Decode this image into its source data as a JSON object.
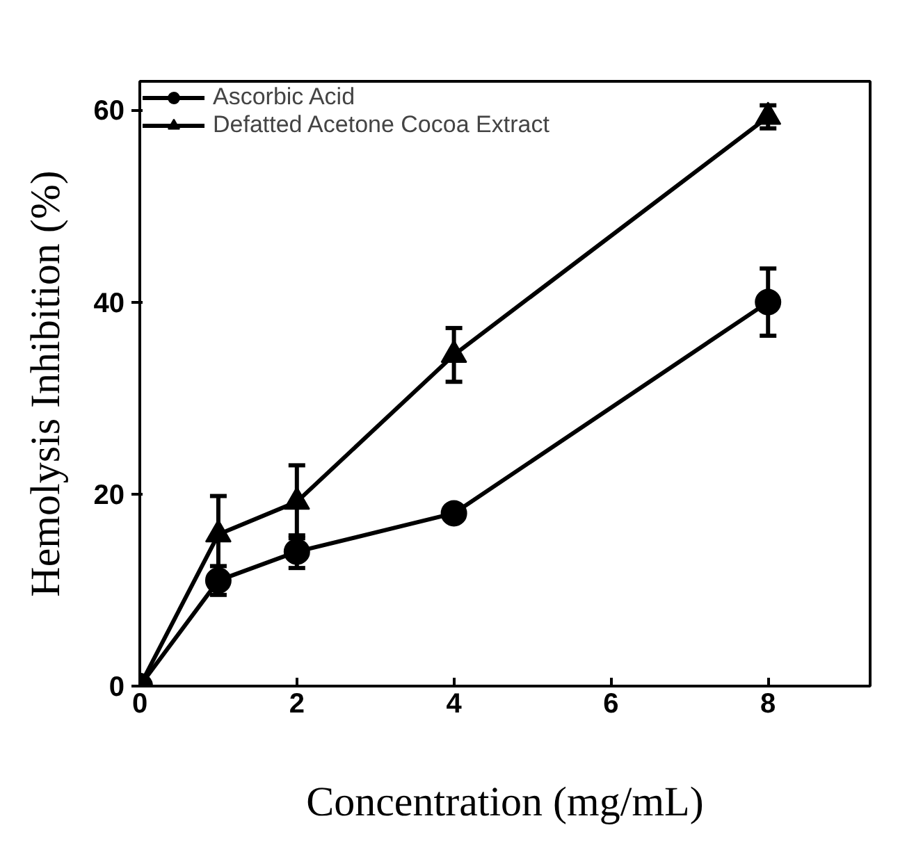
{
  "chart_data": {
    "type": "line",
    "xlabel": "Concentration (mg/mL)",
    "ylabel": "Hemolysis Inhibition (%)",
    "xlim": [
      0,
      9.3
    ],
    "xticks": [
      0,
      2,
      4,
      6,
      8
    ],
    "ylim": [
      0,
      63
    ],
    "yticks": [
      0,
      20,
      40,
      60
    ],
    "grid": false,
    "legend": "top left",
    "line_style": "solid",
    "series": [
      {
        "name": "Ascorbic Acid",
        "color": "#000000",
        "marker": "circle",
        "x": [
          0,
          1,
          2,
          4,
          8
        ],
        "values": [
          0,
          11,
          14,
          18,
          40
        ],
        "errors": [
          null,
          1.5,
          1.7,
          null,
          3.5
        ]
      },
      {
        "name": "Defatted Acetone Cocoa Extract",
        "color": "#000000",
        "marker": "triangle",
        "x": [
          0,
          1,
          2,
          4,
          8
        ],
        "values": [
          0,
          15.8,
          19.2,
          34.5,
          59.3
        ],
        "errors": [
          null,
          4,
          3.8,
          2.8,
          1.2
        ]
      }
    ]
  }
}
